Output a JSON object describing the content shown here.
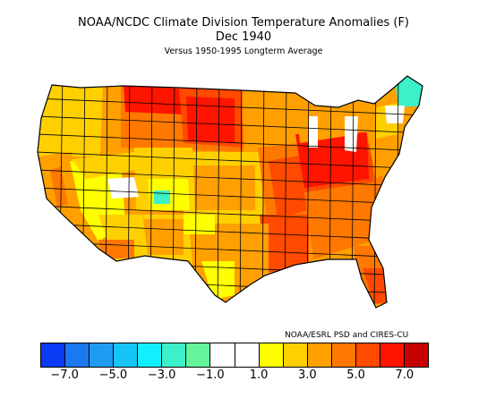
{
  "title": "NOAA/NCDC Climate Division Temperature Anomalies (F)",
  "subtitle": "Dec 1940",
  "baseline": "Versus 1950-1995 Longterm Average",
  "credit": "NOAA/ESRL PSD and CIRES-CU",
  "colorbar": {
    "colors": [
      "#0a3cf5",
      "#1a78f0",
      "#1f9cf2",
      "#15c5f5",
      "#11f0ff",
      "#3cf0c8",
      "#64f59a",
      "#ffffff",
      "#ffffff",
      "#ffff00",
      "#ffd000",
      "#ffa000",
      "#ff7800",
      "#ff4a00",
      "#ff1400",
      "#c80000"
    ],
    "ticks": [
      "−7.0",
      "−5.0",
      "−3.0",
      "−1.0",
      "1.0",
      "3.0",
      "5.0",
      "7.0"
    ],
    "tick_values": [
      -7,
      -5,
      -3,
      -1,
      1,
      3,
      5,
      7
    ]
  },
  "map_regions": [
    {
      "region": "Pacific Northwest",
      "color": "#ffd000"
    },
    {
      "region": "California",
      "color": "#ffa000"
    },
    {
      "region": "Great Basin",
      "color": "#ffff00"
    },
    {
      "region": "Northern Plains",
      "color": "#ff1400"
    },
    {
      "region": "Southwest",
      "color": "#ffd000"
    },
    {
      "region": "Southern Plains",
      "color": "#ffa000"
    },
    {
      "region": "Ohio Valley",
      "color": "#ff4a00"
    },
    {
      "region": "Southeast",
      "color": "#ff7800"
    },
    {
      "region": "Northeast",
      "color": "#ffa000"
    },
    {
      "region": "Maine",
      "color": "#3cf0c8"
    }
  ]
}
